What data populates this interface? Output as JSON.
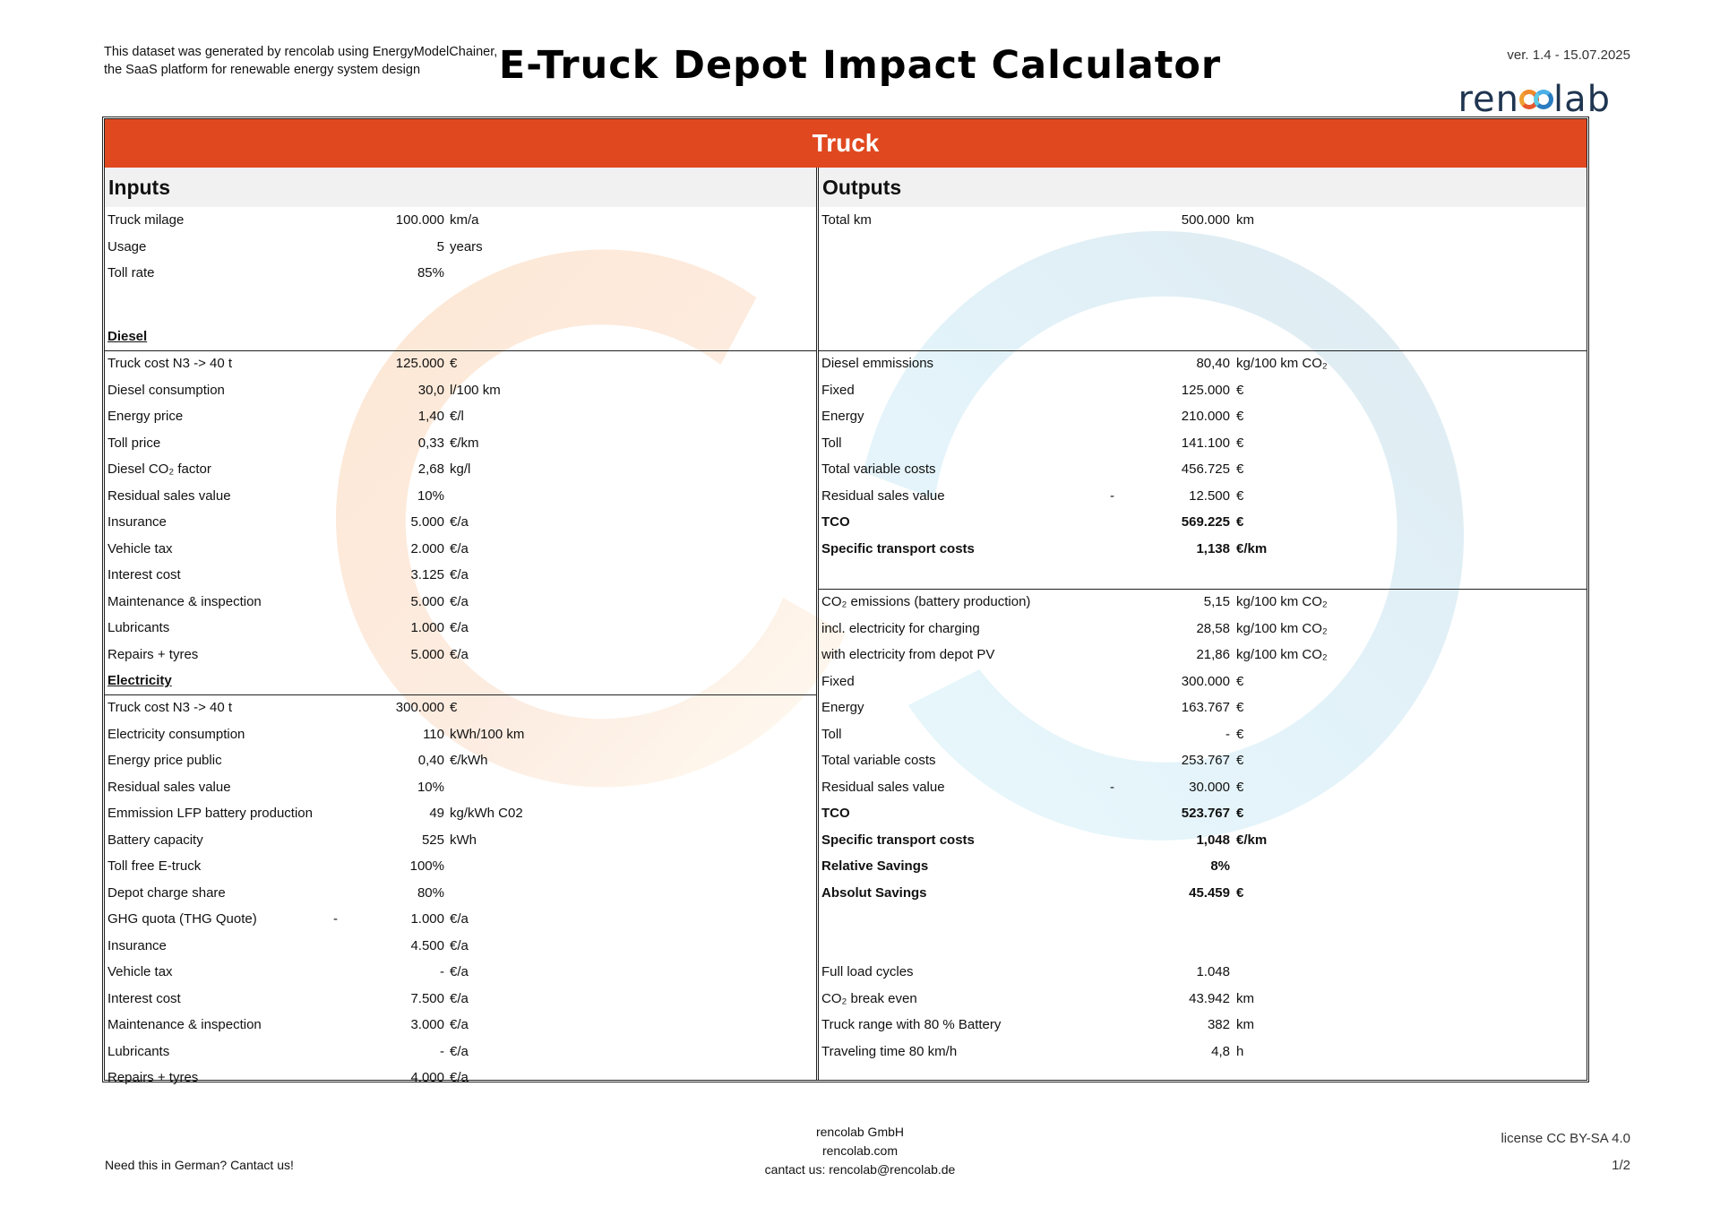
{
  "header": {
    "generated_line1": "This dataset was generated by rencolab using EnergyModelChainer,",
    "generated_line2": "the SaaS platform for renewable energy system design",
    "title": "E-Truck Depot Impact Calculator",
    "version": "ver. 1.4 - 15.07.2025",
    "logo_pre": "ren",
    "logo_post": "lab"
  },
  "banner": "Truck",
  "inputs": {
    "heading": "Inputs",
    "general": [
      {
        "label": "Truck milage",
        "value": "100.000",
        "unit": "km/a"
      },
      {
        "label": "Usage",
        "value": "5",
        "unit": "years"
      },
      {
        "label": "Toll rate",
        "value": "85%",
        "unit": ""
      }
    ],
    "diesel_heading": "Diesel",
    "diesel": [
      {
        "label": "Truck cost N3 -> 40 t",
        "value": "125.000",
        "unit": "€"
      },
      {
        "label": "Diesel consumption",
        "value": "30,0",
        "unit": "l/100 km"
      },
      {
        "label": "Energy price",
        "value": "1,40",
        "unit": "€/l"
      },
      {
        "label": "Toll price",
        "value": "0,33",
        "unit": "€/km"
      },
      {
        "label": "Diesel CO₂ factor",
        "value": "2,68",
        "unit": "kg/l"
      },
      {
        "label": "Residual sales value",
        "value": "10%",
        "unit": ""
      },
      {
        "label": "Insurance",
        "value": "5.000",
        "unit": "€/a"
      },
      {
        "label": "Vehicle tax",
        "value": "2.000",
        "unit": "€/a"
      },
      {
        "label": "Interest cost",
        "value": "3.125",
        "unit": "€/a"
      },
      {
        "label": "Maintenance & inspection",
        "value": "5.000",
        "unit": "€/a"
      },
      {
        "label": "Lubricants",
        "value": "1.000",
        "unit": "€/a"
      },
      {
        "label": "Repairs + tyres",
        "value": "5.000",
        "unit": "€/a"
      }
    ],
    "electricity_heading": "Electricity",
    "electricity": [
      {
        "label": "Truck cost N3 -> 40 t",
        "value": "300.000",
        "unit": "€"
      },
      {
        "label": "Electricity consumption",
        "value": "110",
        "unit": "kWh/100 km"
      },
      {
        "label": "Energy price public",
        "value": "0,40",
        "unit": "€/kWh"
      },
      {
        "label": "Residual sales value",
        "value": "10%",
        "unit": ""
      },
      {
        "label": "Emmission LFP battery production",
        "value": "49",
        "unit": "kg/kWh C02"
      },
      {
        "label": "Battery capacity",
        "value": "525",
        "unit": "kWh"
      },
      {
        "label": "Toll free E-truck",
        "value": "100%",
        "unit": ""
      },
      {
        "label": "Depot charge share",
        "value": "80%",
        "unit": ""
      },
      {
        "label": "GHG quota (THG Quote)",
        "dash": "-",
        "value": "1.000",
        "unit": "€/a"
      },
      {
        "label": "Insurance",
        "value": "4.500",
        "unit": "€/a"
      },
      {
        "label": "Vehicle tax",
        "value": "-",
        "unit": "€/a"
      },
      {
        "label": "Interest cost",
        "value": "7.500",
        "unit": "€/a"
      },
      {
        "label": "Maintenance & inspection",
        "value": "3.000",
        "unit": "€/a"
      },
      {
        "label": "Lubricants",
        "value": "-",
        "unit": "€/a"
      },
      {
        "label": "Repairs + tyres",
        "value": "4.000",
        "unit": "€/a"
      }
    ]
  },
  "outputs": {
    "heading": "Outputs",
    "general": [
      {
        "label": "Total km",
        "value": "500.000",
        "unit": "km"
      }
    ],
    "diesel": [
      {
        "label": "Diesel emmissions",
        "value": "80,40",
        "unit": "kg/100 km CO₂"
      },
      {
        "label": "Fixed",
        "value": "125.000",
        "unit": "€"
      },
      {
        "label": "Energy",
        "value": "210.000",
        "unit": "€"
      },
      {
        "label": "Toll",
        "value": "141.100",
        "unit": "€"
      },
      {
        "label": "Total variable costs",
        "value": "456.725",
        "unit": "€"
      },
      {
        "label": "Residual sales value",
        "dash": "-",
        "value": "12.500",
        "unit": "€"
      },
      {
        "label": "TCO",
        "value": "569.225",
        "unit": "€",
        "bold": true
      },
      {
        "label": "Specific transport costs",
        "value": "1,138",
        "unit": "€/km",
        "bold": true
      }
    ],
    "electric": [
      {
        "label": "CO₂ emissions (battery production)",
        "value": "5,15",
        "unit": "kg/100 km CO₂"
      },
      {
        "label": "incl. electricity for charging",
        "value": "28,58",
        "unit": "kg/100 km CO₂"
      },
      {
        "label": "with electricity from depot PV",
        "value": "21,86",
        "unit": "kg/100 km CO₂"
      },
      {
        "label": "Fixed",
        "value": "300.000",
        "unit": "€"
      },
      {
        "label": "Energy",
        "value": "163.767",
        "unit": "€"
      },
      {
        "label": "Toll",
        "value": "-",
        "unit": "€"
      },
      {
        "label": "Total variable costs",
        "value": "253.767",
        "unit": "€"
      },
      {
        "label": "Residual sales value",
        "dash": "-",
        "value": "30.000",
        "unit": "€"
      },
      {
        "label": "TCO",
        "value": "523.767",
        "unit": "€",
        "bold": true
      },
      {
        "label": "Specific transport costs",
        "value": "1,048",
        "unit": "€/km",
        "bold": true
      },
      {
        "label": "Relative Savings",
        "value": "8%",
        "unit": "",
        "bold": true
      },
      {
        "label": "Absolut Savings",
        "value": "45.459",
        "unit": "€",
        "bold": true
      }
    ],
    "extra": [
      {
        "label": "Full load cycles",
        "value": "1.048",
        "unit": ""
      },
      {
        "label": "CO₂ break even",
        "value": "43.942",
        "unit": "km"
      },
      {
        "label": "Truck range with 80 % Battery",
        "value": "382",
        "unit": "km"
      },
      {
        "label": "Traveling time 80 km/h",
        "value": "4,8",
        "unit": "h"
      }
    ]
  },
  "footer": {
    "german_note": "Need this in German? Cantact us!",
    "company": "rencolab GmbH",
    "website": "rencolab.com",
    "contact": "cantact us: rencolab@rencolab.de",
    "license": "license CC BY-SA 4.0",
    "page": "1/2"
  },
  "colors": {
    "banner": "#e0481f",
    "logo_dark": "#1f3550",
    "ring_orange": "#f5a35a",
    "ring_blue": "#6fc3e8"
  }
}
